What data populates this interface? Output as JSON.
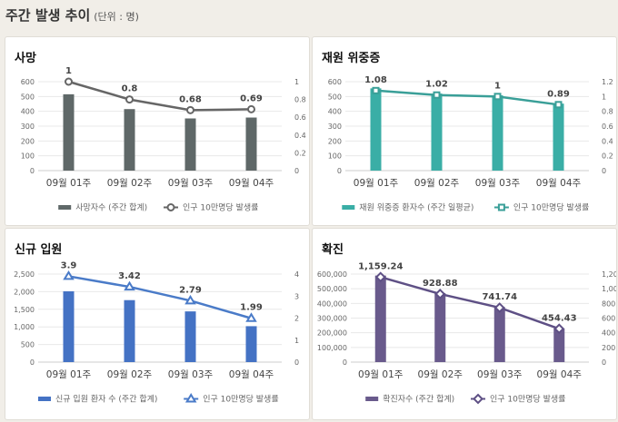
{
  "header": {
    "title": "주간 발생 추이",
    "unit": "(단위 : 명)"
  },
  "chart_data": [
    {
      "type": "bar+line",
      "title": "사망",
      "categories": [
        "09월 01주",
        "09월 02주",
        "09월 03주",
        "09월 04주"
      ],
      "bar": {
        "name": "사망자수 (주간 합계)",
        "values": [
          515,
          415,
          352,
          358
        ],
        "color": "#5f6868"
      },
      "line": {
        "name": "인구 10만명당 발생률",
        "values": [
          1,
          0.8,
          0.68,
          0.69
        ],
        "labels": [
          "1",
          "0.8",
          "0.68",
          "0.69"
        ],
        "color": "#666",
        "marker": "circle"
      },
      "y_left": {
        "ticks": [
          "0",
          "100",
          "200",
          "300",
          "400",
          "500",
          "600"
        ],
        "range": [
          0,
          600
        ]
      },
      "y_right": {
        "ticks": [
          "0",
          "0.2",
          "0.4",
          "0.6",
          "0.8",
          "1"
        ],
        "range": [
          0,
          1
        ]
      },
      "legend": "bottom"
    },
    {
      "type": "bar+line",
      "title": "재원 위중증",
      "categories": [
        "09월 01주",
        "09월 02주",
        "09월 03주",
        "09월 04주"
      ],
      "bar": {
        "name": "재원 위중증 환자수 (주간 일평균)",
        "values": [
          555,
          520,
          508,
          452
        ],
        "color": "#3aaea6"
      },
      "line": {
        "name": "인구 10만명당 발생률",
        "values": [
          1.08,
          1.02,
          1,
          0.89
        ],
        "labels": [
          "1.08",
          "1.02",
          "1",
          "0.89"
        ],
        "color": "#3a9f98",
        "marker": "square"
      },
      "y_left": {
        "ticks": [
          "0",
          "100",
          "200",
          "300",
          "400",
          "500",
          "600"
        ],
        "range": [
          0,
          600
        ]
      },
      "y_right": {
        "ticks": [
          "0",
          "0.2",
          "0.4",
          "0.6",
          "0.8",
          "1",
          "1.2"
        ],
        "range": [
          0,
          1.2
        ]
      },
      "legend": "bottom"
    },
    {
      "type": "bar+line",
      "title": "신규 입원",
      "categories": [
        "09월 01주",
        "09월 02주",
        "09월 03주",
        "09월 04주"
      ],
      "bar": {
        "name": "신규 입원 환자 수 (주간 합계)",
        "values": [
          2010,
          1760,
          1440,
          1020
        ],
        "color": "#4472c4"
      },
      "line": {
        "name": "인구 10만명당 발생률",
        "values": [
          3.9,
          3.42,
          2.79,
          1.99
        ],
        "labels": [
          "3.9",
          "3.42",
          "2.79",
          "1.99"
        ],
        "color": "#4a7bc8",
        "marker": "triangle"
      },
      "y_left": {
        "ticks": [
          "0",
          "500",
          "1,000",
          "1,500",
          "2,000",
          "2,500"
        ],
        "range": [
          0,
          2500
        ]
      },
      "y_right": {
        "ticks": [
          "0",
          "1",
          "2",
          "3",
          "4"
        ],
        "range": [
          0,
          4
        ]
      },
      "legend": "bottom"
    },
    {
      "type": "bar+line",
      "title": "확진",
      "categories": [
        "09월 01주",
        "09월 02주",
        "09월 03주",
        "09월 04주"
      ],
      "bar": {
        "name": "확진자수 (주간 합계)",
        "values": [
          590000,
          470000,
          375000,
          230000
        ],
        "color": "#695a8c"
      },
      "line": {
        "name": "인구 10만명당 발생률",
        "values": [
          1159.24,
          928.88,
          741.74,
          454.43
        ],
        "labels": [
          "1,159.24",
          "928.88",
          "741.74",
          "454.43"
        ],
        "color": "#5e5085",
        "marker": "diamond"
      },
      "y_left": {
        "ticks": [
          "0",
          "100,000",
          "200,000",
          "300,000",
          "400,000",
          "500,000",
          "600,000"
        ],
        "range": [
          0,
          600000
        ]
      },
      "y_right": {
        "ticks": [
          "0",
          "200",
          "400",
          "600",
          "800",
          "1,000",
          "1,200"
        ],
        "range": [
          0,
          1200
        ]
      },
      "legend": "bottom"
    }
  ]
}
